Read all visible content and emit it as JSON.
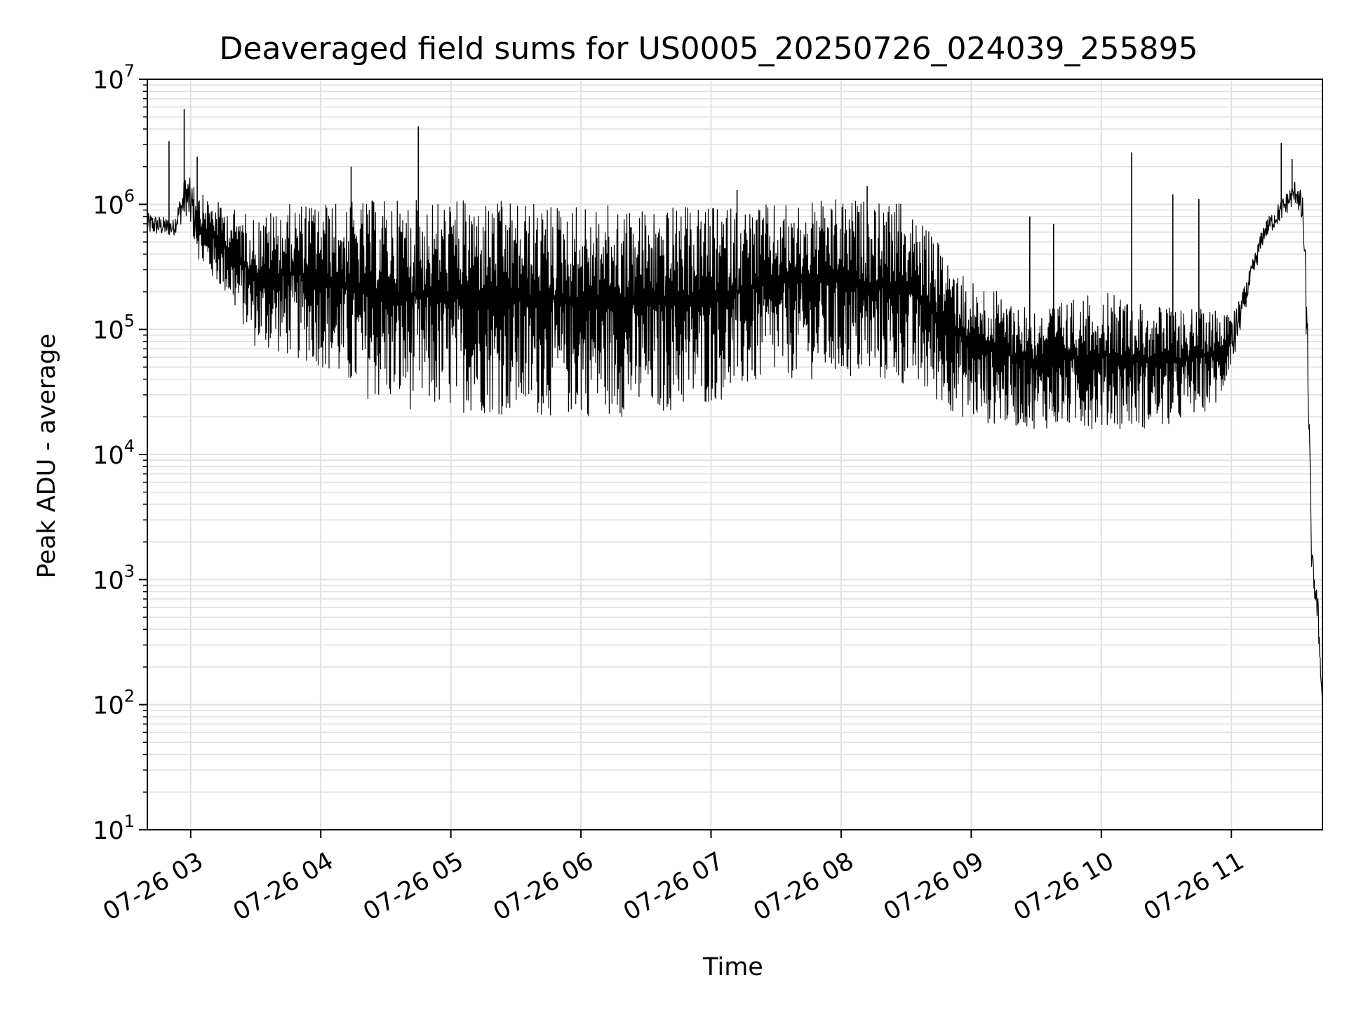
{
  "chart_data": {
    "type": "line",
    "title": "Deaveraged field sums for US0005_20250726_024039_255895",
    "xlabel": "Time",
    "ylabel": "Peak ADU - average",
    "yscale": "log",
    "ylim": [
      10,
      10000000
    ],
    "xlim": [
      "2025-07-26 02:40",
      "2025-07-26 11:42"
    ],
    "grid": true,
    "x_ticks": [
      "07-26 03",
      "07-26 04",
      "07-26 05",
      "07-26 06",
      "07-26 07",
      "07-26 08",
      "07-26 09",
      "07-26 10",
      "07-26 11"
    ],
    "y_ticks": [
      {
        "base": "10",
        "exp": "1"
      },
      {
        "base": "10",
        "exp": "2"
      },
      {
        "base": "10",
        "exp": "3"
      },
      {
        "base": "10",
        "exp": "4"
      },
      {
        "base": "10",
        "exp": "5"
      },
      {
        "base": "10",
        "exp": "6"
      },
      {
        "base": "10",
        "exp": "7"
      }
    ],
    "line_color": "#000000",
    "grid_color": "#e0e0e0",
    "series": [
      {
        "x": [
          "2025-07-26 02:40",
          "2025-07-26 02:52",
          "2025-07-26 02:58",
          "2025-07-26 03:05",
          "2025-07-26 03:15",
          "2025-07-26 03:30",
          "2025-07-26 03:45",
          "2025-07-26 04:00",
          "2025-07-26 04:15",
          "2025-07-26 04:30",
          "2025-07-26 04:45",
          "2025-07-26 05:00",
          "2025-07-26 05:30",
          "2025-07-26 06:00",
          "2025-07-26 06:30",
          "2025-07-26 07:00",
          "2025-07-26 07:30",
          "2025-07-26 08:00",
          "2025-07-26 08:30",
          "2025-07-26 09:00",
          "2025-07-26 09:30",
          "2025-07-26 10:00",
          "2025-07-26 10:30",
          "2025-07-26 10:55",
          "2025-07-26 11:05",
          "2025-07-26 11:15",
          "2025-07-26 11:25",
          "2025-07-26 11:30",
          "2025-07-26 11:33",
          "2025-07-26 11:35",
          "2025-07-26 11:37",
          "2025-07-26 11:40",
          "2025-07-26 11:42"
        ],
        "y": [
          700000,
          650000,
          1200000,
          600000,
          400000,
          200000,
          150000,
          180000,
          250000,
          300000,
          250000,
          250000,
          200000,
          150000,
          120000,
          100000,
          150000,
          200000,
          150000,
          40000,
          25000,
          22000,
          25000,
          35000,
          150000,
          600000,
          1000000,
          1300000,
          800000,
          100000,
          1500,
          500,
          100
        ],
        "band_low": [
          600000,
          580000,
          900000,
          300000,
          200000,
          70000,
          60000,
          50000,
          30000,
          25000,
          22000,
          22000,
          20000,
          20000,
          20000,
          25000,
          40000,
          40000,
          35000,
          18000,
          16000,
          16000,
          16000,
          25000,
          120000,
          500000,
          800000,
          1000000,
          500000,
          50000,
          1000,
          300,
          100
        ],
        "band_high": [
          900000,
          800000,
          2000000,
          1200000,
          1000000,
          800000,
          1000000,
          1050000,
          1050000,
          1100000,
          1100000,
          1100000,
          1050000,
          1000000,
          950000,
          950000,
          1000000,
          1100000,
          1000000,
          250000,
          150000,
          200000,
          150000,
          150000,
          200000,
          700000,
          1200000,
          1600000,
          1000000,
          200000,
          1500,
          600,
          100
        ],
        "spikes": [
          {
            "x": "2025-07-26 02:50",
            "y": 3200000
          },
          {
            "x": "2025-07-26 02:57",
            "y": 5800000
          },
          {
            "x": "2025-07-26 03:03",
            "y": 2400000
          },
          {
            "x": "2025-07-26 04:14",
            "y": 2000000
          },
          {
            "x": "2025-07-26 04:45",
            "y": 4200000
          },
          {
            "x": "2025-07-26 07:12",
            "y": 1300000
          },
          {
            "x": "2025-07-26 08:12",
            "y": 1400000
          },
          {
            "x": "2025-07-26 09:27",
            "y": 800000
          },
          {
            "x": "2025-07-26 09:38",
            "y": 700000
          },
          {
            "x": "2025-07-26 10:14",
            "y": 2600000
          },
          {
            "x": "2025-07-26 10:33",
            "y": 1200000
          },
          {
            "x": "2025-07-26 10:45",
            "y": 1100000
          },
          {
            "x": "2025-07-26 11:23",
            "y": 3100000
          },
          {
            "x": "2025-07-26 11:28",
            "y": 2300000
          }
        ]
      }
    ]
  }
}
